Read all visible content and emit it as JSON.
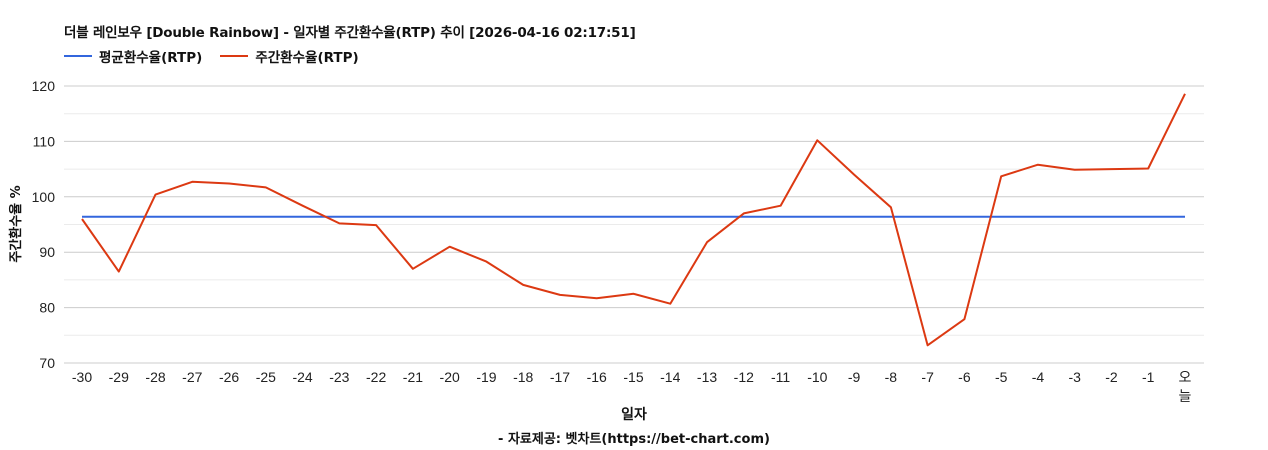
{
  "header": {
    "title": "더블 레인보우 [Double Rainbow] - 일자별 주간환수율(RTP) 추이 [2026-04-16 02:17:51]"
  },
  "legend": [
    {
      "label": "평균환수율(RTP)",
      "color": "#3366dd"
    },
    {
      "label": "주간환수율(RTP)",
      "color": "#dc3912"
    }
  ],
  "axes": {
    "ylabel": "주간환수율 %",
    "xlabel": "일자",
    "yticks": [
      "70",
      "80",
      "90",
      "100",
      "110",
      "120"
    ]
  },
  "footer": {
    "source": "- 자료제공: 벳차트(https://bet-chart.com)"
  },
  "chart_data": {
    "type": "line",
    "title": "더블 레인보우 [Double Rainbow] - 일자별 주간환수율(RTP) 추이 [2026-04-16 02:17:51]",
    "xlabel": "일자",
    "ylabel": "주간환수율 %",
    "ylim": [
      70,
      120
    ],
    "grid": true,
    "legend_position": "top-left",
    "categories": [
      "-30",
      "-29",
      "-28",
      "-27",
      "-26",
      "-25",
      "-24",
      "-23",
      "-22",
      "-21",
      "-20",
      "-19",
      "-18",
      "-17",
      "-16",
      "-15",
      "-14",
      "-13",
      "-12",
      "-11",
      "-10",
      "-9",
      "-8",
      "-7",
      "-6",
      "-5",
      "-4",
      "-3",
      "-2",
      "-1",
      "오늘"
    ],
    "series": [
      {
        "name": "평균환수율(RTP)",
        "color": "#3366dd",
        "values": [
          96.4,
          96.4,
          96.4,
          96.4,
          96.4,
          96.4,
          96.4,
          96.4,
          96.4,
          96.4,
          96.4,
          96.4,
          96.4,
          96.4,
          96.4,
          96.4,
          96.4,
          96.4,
          96.4,
          96.4,
          96.4,
          96.4,
          96.4,
          96.4,
          96.4,
          96.4,
          96.4,
          96.4,
          96.4,
          96.4,
          96.4
        ]
      },
      {
        "name": "주간환수율(RTP)",
        "color": "#dc3912",
        "values": [
          96.0,
          86.5,
          100.4,
          102.7,
          102.4,
          101.7,
          98.4,
          95.2,
          94.9,
          87.0,
          91.0,
          88.3,
          84.1,
          82.3,
          81.7,
          82.5,
          80.7,
          91.8,
          97.0,
          98.4,
          110.2,
          104.0,
          98.1,
          73.2,
          77.9,
          103.7,
          105.8,
          104.9,
          105.0,
          105.1,
          118.6
        ]
      }
    ]
  }
}
